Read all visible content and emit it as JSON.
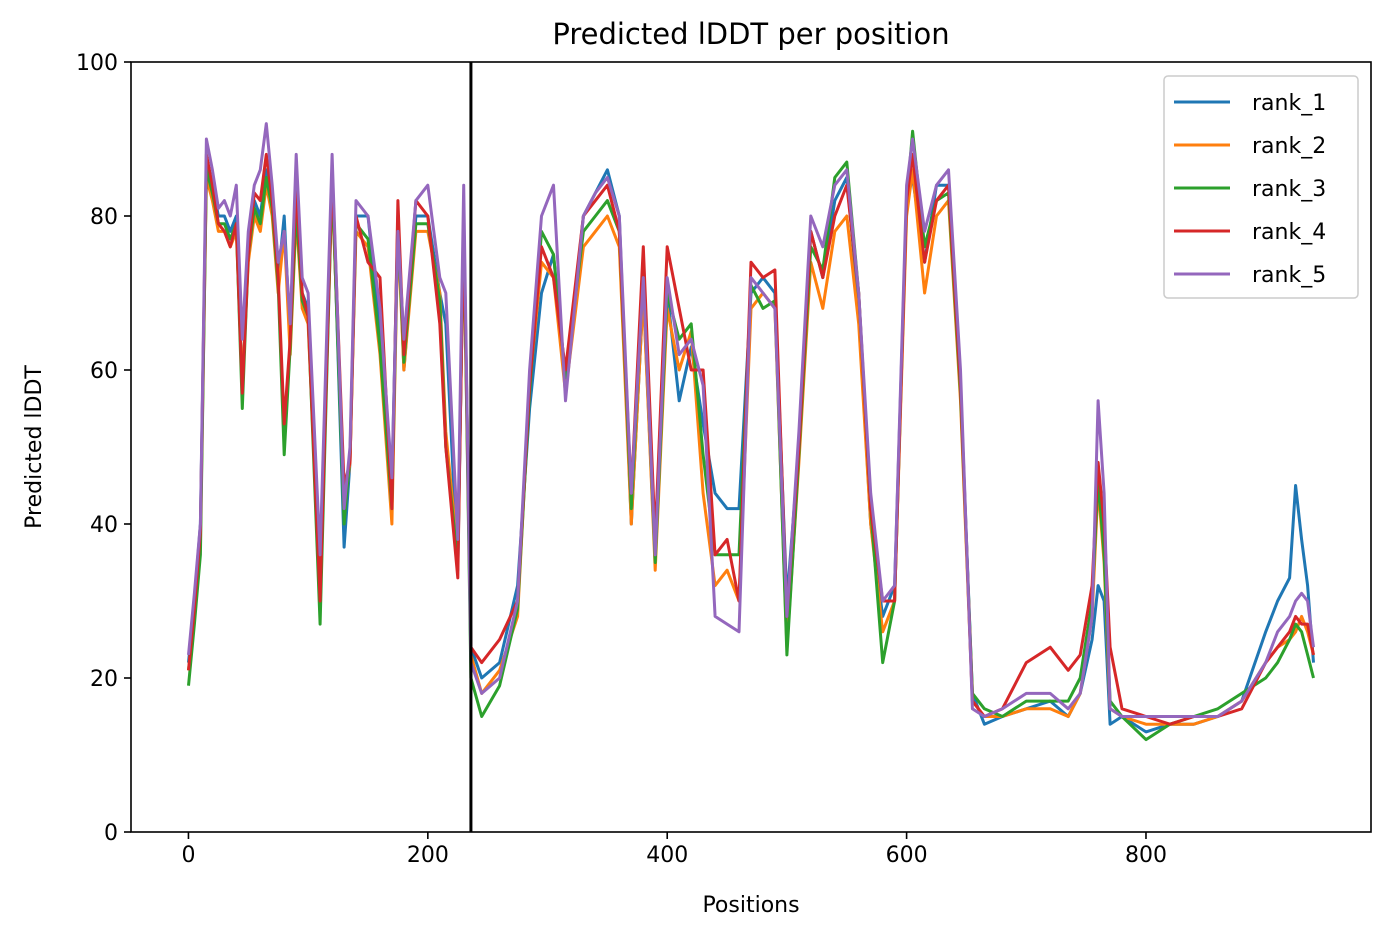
{
  "chart_data": {
    "type": "line",
    "title": "Predicted lDDT per position",
    "xlabel": "Positions",
    "ylabel": "Predicted lDDT",
    "xlim": [
      -48,
      988
    ],
    "ylim": [
      0,
      100
    ],
    "xticks": [
      "0",
      "200",
      "400",
      "600",
      "800"
    ],
    "xtick_values": [
      0,
      200,
      400,
      600,
      800
    ],
    "yticks": [
      "0",
      "20",
      "40",
      "60",
      "80",
      "100"
    ],
    "ytick_values": [
      0,
      20,
      40,
      60,
      80,
      100
    ],
    "grid": false,
    "legend_position": "top-right",
    "vertical_line_x": 236,
    "series": [
      {
        "name": "rank_1",
        "color": "#1f77b4",
        "x": [
          0,
          5,
          10,
          15,
          20,
          25,
          30,
          35,
          40,
          45,
          50,
          55,
          60,
          65,
          70,
          75,
          80,
          85,
          90,
          95,
          100,
          110,
          120,
          130,
          135,
          140,
          150,
          160,
          170,
          175,
          180,
          190,
          200,
          210,
          215,
          225,
          230,
          236,
          245,
          260,
          275,
          285,
          295,
          305,
          315,
          330,
          340,
          350,
          360,
          370,
          380,
          390,
          400,
          410,
          420,
          430,
          440,
          450,
          460,
          470,
          480,
          490,
          500,
          510,
          520,
          530,
          540,
          550,
          560,
          570,
          580,
          590,
          600,
          605,
          615,
          625,
          635,
          645,
          655,
          665,
          680,
          700,
          720,
          735,
          745,
          755,
          760,
          765,
          770,
          780,
          800,
          820,
          840,
          860,
          880,
          900,
          910,
          920,
          925,
          930,
          935,
          940
        ],
        "y": [
          22,
          30,
          40,
          86,
          84,
          80,
          80,
          78,
          80,
          57,
          76,
          82,
          80,
          86,
          82,
          72,
          80,
          64,
          82,
          70,
          68,
          30,
          86,
          37,
          48,
          80,
          80,
          65,
          45,
          80,
          60,
          80,
          80,
          70,
          66,
          34,
          80,
          24,
          20,
          22,
          32,
          55,
          70,
          75,
          58,
          80,
          83,
          86,
          80,
          40,
          70,
          35,
          70,
          56,
          63,
          53,
          44,
          42,
          42,
          70,
          72,
          70,
          30,
          50,
          78,
          72,
          82,
          85,
          68,
          40,
          28,
          32,
          82,
          85,
          74,
          84,
          84,
          58,
          18,
          14,
          15,
          16,
          17,
          15,
          18,
          25,
          32,
          30,
          14,
          15,
          13,
          14,
          14,
          15,
          17,
          26,
          30,
          33,
          45,
          38,
          32,
          22
        ]
      },
      {
        "name": "rank_2",
        "color": "#ff7f0e",
        "x": [
          0,
          5,
          10,
          15,
          20,
          25,
          30,
          35,
          40,
          45,
          50,
          55,
          60,
          65,
          70,
          75,
          80,
          85,
          90,
          95,
          100,
          110,
          120,
          130,
          135,
          140,
          150,
          160,
          170,
          175,
          180,
          190,
          200,
          210,
          215,
          225,
          230,
          236,
          245,
          260,
          275,
          285,
          295,
          305,
          315,
          330,
          340,
          350,
          360,
          370,
          380,
          390,
          400,
          410,
          420,
          430,
          440,
          450,
          460,
          470,
          480,
          490,
          500,
          510,
          520,
          530,
          540,
          550,
          560,
          570,
          580,
          590,
          600,
          605,
          615,
          625,
          635,
          645,
          655,
          665,
          680,
          700,
          720,
          735,
          745,
          755,
          760,
          765,
          770,
          780,
          800,
          820,
          840,
          860,
          880,
          900,
          910,
          920,
          925,
          930,
          935,
          940
        ],
        "y": [
          21,
          28,
          38,
          85,
          82,
          78,
          78,
          76,
          78,
          58,
          74,
          80,
          78,
          84,
          80,
          70,
          78,
          62,
          80,
          68,
          66,
          31,
          84,
          42,
          48,
          78,
          76,
          62,
          40,
          78,
          60,
          78,
          78,
          70,
          52,
          36,
          78,
          23,
          18,
          21,
          28,
          58,
          74,
          72,
          57,
          76,
          78,
          80,
          76,
          40,
          70,
          34,
          68,
          60,
          65,
          44,
          32,
          34,
          30,
          68,
          70,
          68,
          24,
          48,
          74,
          68,
          78,
          80,
          66,
          40,
          26,
          30,
          80,
          86,
          70,
          80,
          82,
          56,
          17,
          15,
          15,
          16,
          16,
          15,
          18,
          28,
          45,
          35,
          16,
          15,
          14,
          14,
          14,
          15,
          17,
          22,
          24,
          25,
          26,
          28,
          26,
          23
        ]
      },
      {
        "name": "rank_3",
        "color": "#2ca02c",
        "x": [
          0,
          5,
          10,
          15,
          20,
          25,
          30,
          35,
          40,
          45,
          50,
          55,
          60,
          65,
          70,
          75,
          80,
          85,
          90,
          95,
          100,
          110,
          120,
          130,
          135,
          140,
          150,
          160,
          170,
          175,
          180,
          190,
          200,
          210,
          215,
          225,
          230,
          236,
          245,
          260,
          275,
          285,
          295,
          305,
          315,
          330,
          340,
          350,
          360,
          370,
          380,
          390,
          400,
          410,
          420,
          430,
          440,
          450,
          460,
          470,
          480,
          490,
          500,
          510,
          520,
          530,
          540,
          550,
          560,
          570,
          580,
          590,
          600,
          605,
          615,
          625,
          635,
          645,
          655,
          665,
          680,
          700,
          720,
          735,
          745,
          755,
          760,
          765,
          770,
          780,
          800,
          820,
          840,
          860,
          880,
          900,
          910,
          920,
          925,
          930,
          935,
          940
        ],
        "y": [
          19,
          27,
          36,
          86,
          83,
          79,
          79,
          77,
          79,
          55,
          75,
          81,
          79,
          85,
          81,
          71,
          49,
          63,
          81,
          69,
          67,
          27,
          85,
          40,
          49,
          79,
          77,
          63,
          42,
          79,
          61,
          79,
          79,
          69,
          50,
          35,
          79,
          20,
          15,
          19,
          29,
          57,
          78,
          75,
          59,
          78,
          80,
          82,
          78,
          42,
          73,
          35,
          70,
          64,
          66,
          49,
          36,
          36,
          36,
          71,
          68,
          69,
          23,
          49,
          76,
          73,
          85,
          87,
          70,
          42,
          22,
          30,
          82,
          91,
          76,
          82,
          83,
          57,
          18,
          16,
          15,
          17,
          17,
          17,
          20,
          30,
          46,
          36,
          17,
          15,
          12,
          14,
          15,
          16,
          18,
          20,
          22,
          25,
          27,
          26,
          23,
          20
        ]
      },
      {
        "name": "rank_4",
        "color": "#d62728",
        "x": [
          0,
          5,
          10,
          15,
          20,
          25,
          30,
          35,
          40,
          45,
          50,
          55,
          60,
          65,
          70,
          75,
          80,
          85,
          90,
          95,
          100,
          110,
          120,
          130,
          135,
          140,
          150,
          160,
          170,
          175,
          180,
          190,
          200,
          210,
          215,
          225,
          230,
          236,
          245,
          260,
          275,
          285,
          295,
          305,
          315,
          330,
          340,
          350,
          360,
          370,
          380,
          390,
          400,
          410,
          420,
          430,
          440,
          450,
          460,
          470,
          480,
          490,
          500,
          510,
          520,
          530,
          540,
          550,
          560,
          570,
          580,
          590,
          600,
          605,
          615,
          625,
          635,
          645,
          655,
          665,
          680,
          700,
          720,
          735,
          745,
          755,
          760,
          765,
          770,
          780,
          800,
          820,
          840,
          860,
          880,
          900,
          910,
          920,
          925,
          930,
          935,
          940
        ],
        "y": [
          21,
          29,
          39,
          88,
          84,
          79,
          78,
          76,
          79,
          57,
          75,
          83,
          82,
          88,
          82,
          72,
          53,
          64,
          84,
          70,
          67,
          30,
          86,
          45,
          48,
          80,
          74,
          72,
          42,
          82,
          62,
          82,
          80,
          66,
          50,
          33,
          80,
          24,
          22,
          25,
          30,
          58,
          76,
          72,
          60,
          80,
          82,
          84,
          78,
          44,
          76,
          38,
          76,
          68,
          60,
          60,
          36,
          38,
          30,
          74,
          72,
          73,
          28,
          50,
          78,
          72,
          80,
          84,
          70,
          42,
          30,
          30,
          82,
          88,
          74,
          82,
          84,
          58,
          17,
          15,
          16,
          22,
          24,
          21,
          23,
          32,
          48,
          40,
          24,
          16,
          15,
          14,
          15,
          15,
          16,
          22,
          24,
          26,
          28,
          27,
          27,
          23
        ]
      },
      {
        "name": "rank_5",
        "color": "#9467bd",
        "x": [
          0,
          5,
          10,
          15,
          20,
          25,
          30,
          35,
          40,
          45,
          50,
          55,
          60,
          65,
          70,
          75,
          80,
          85,
          90,
          95,
          100,
          110,
          120,
          130,
          135,
          140,
          150,
          160,
          170,
          175,
          180,
          190,
          200,
          210,
          215,
          225,
          230,
          236,
          245,
          260,
          275,
          285,
          295,
          305,
          315,
          330,
          340,
          350,
          360,
          370,
          380,
          390,
          400,
          410,
          420,
          430,
          440,
          450,
          460,
          470,
          480,
          490,
          500,
          510,
          520,
          530,
          540,
          550,
          560,
          570,
          580,
          590,
          600,
          605,
          615,
          625,
          635,
          645,
          655,
          665,
          680,
          700,
          720,
          735,
          745,
          755,
          760,
          765,
          770,
          780,
          800,
          820,
          840,
          860,
          880,
          900,
          910,
          920,
          925,
          930,
          935,
          940
        ],
        "y": [
          23,
          31,
          40,
          90,
          86,
          81,
          82,
          80,
          84,
          64,
          78,
          84,
          86,
          92,
          84,
          74,
          78,
          66,
          88,
          72,
          70,
          36,
          88,
          42,
          50,
          82,
          80,
          68,
          46,
          78,
          64,
          82,
          84,
          72,
          70,
          38,
          84,
          22,
          18,
          20,
          30,
          60,
          80,
          84,
          56,
          80,
          83,
          85,
          80,
          44,
          72,
          36,
          72,
          62,
          64,
          58,
          28,
          27,
          26,
          72,
          70,
          68,
          28,
          52,
          80,
          76,
          84,
          86,
          70,
          44,
          30,
          32,
          84,
          90,
          78,
          84,
          86,
          60,
          16,
          15,
          16,
          18,
          18,
          16,
          18,
          28,
          56,
          44,
          16,
          15,
          15,
          15,
          15,
          15,
          17,
          22,
          26,
          28,
          30,
          31,
          30,
          24
        ]
      }
    ]
  }
}
